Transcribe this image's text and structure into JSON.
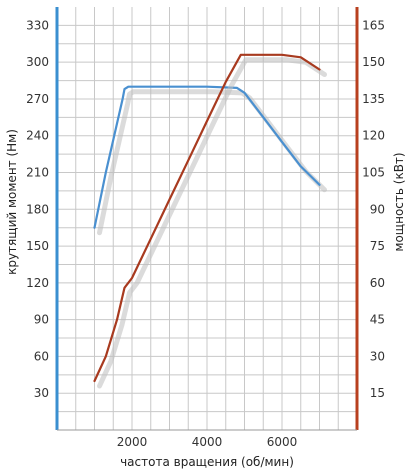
{
  "chart_data": {
    "type": "line",
    "xlabel": "частота вращения (об/мин)",
    "ylabel_left": "крутящий момент (Нм)",
    "ylabel_right": "мощность (кВт)",
    "xlim": [
      0,
      8000
    ],
    "x_ticks": [
      2000,
      4000,
      6000
    ],
    "ylim_left": [
      0,
      345
    ],
    "ylim_right": [
      0,
      172.5
    ],
    "y_ticks_left": [
      30,
      60,
      90,
      120,
      150,
      180,
      210,
      240,
      270,
      300,
      330
    ],
    "y_ticks_right": [
      15,
      30,
      45,
      60,
      75,
      90,
      105,
      120,
      135,
      150,
      165
    ],
    "grid": true,
    "colors": {
      "torque": "#4a90d0",
      "power": "#a83a1f",
      "left_axis": "#3a8fd0",
      "right_axis": "#b8401f",
      "grid": "#c8c8c8"
    },
    "series": [
      {
        "axis": "left",
        "color": "#4a90d0",
        "x": [
          1000,
          1300,
          1600,
          1750,
          1800,
          1900,
          2000,
          3000,
          4000,
          4800,
          5000,
          5500,
          6000,
          6500,
          7000
        ],
        "values": [
          165,
          210,
          250,
          270,
          278,
          280,
          280,
          280,
          280,
          279,
          275,
          255,
          235,
          215,
          200
        ]
      },
      {
        "axis": "right",
        "color": "#a83a1f",
        "x": [
          1000,
          1300,
          1600,
          1800,
          2000,
          2500,
          3000,
          3500,
          4000,
          4500,
          4900,
          5100,
          5500,
          6000,
          6500,
          7000
        ],
        "values": [
          20,
          30,
          45,
          58,
          62,
          78,
          94,
          110,
          126,
          142,
          153,
          153,
          153,
          153,
          152,
          147
        ]
      }
    ]
  }
}
